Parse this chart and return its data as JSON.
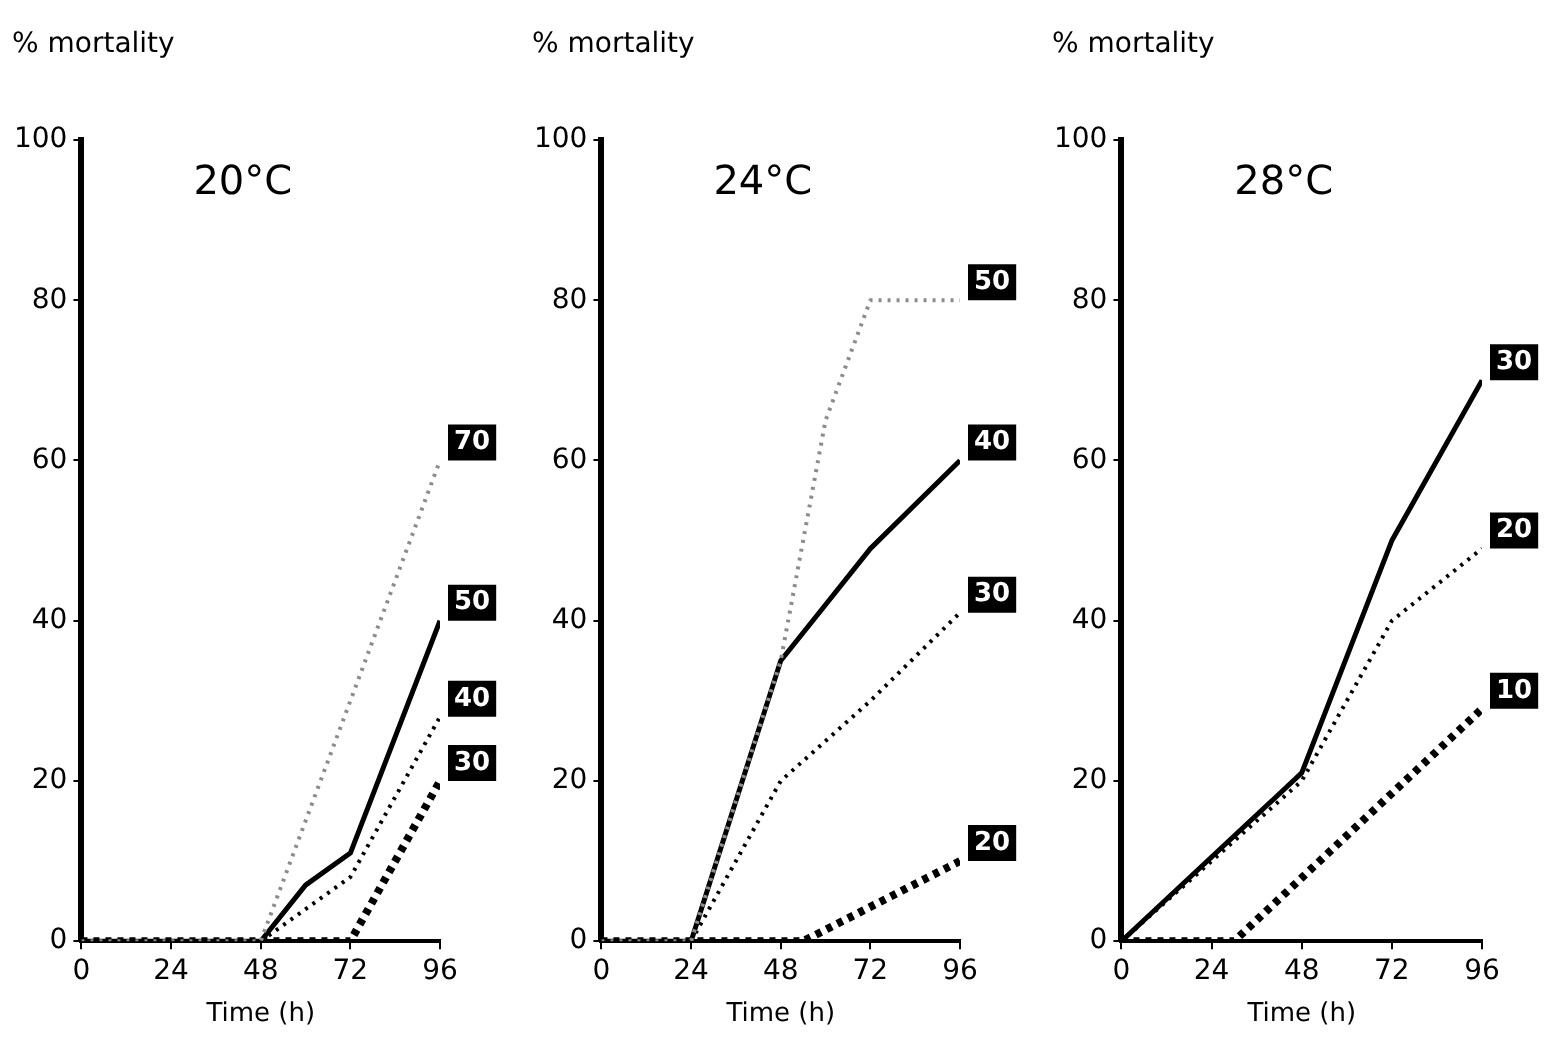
{
  "chart_data": [
    {
      "type": "line",
      "title": "20°C",
      "xlabel": "Time (h)",
      "ylabel": "% mortality",
      "xlim": [
        0,
        96
      ],
      "ylim": [
        0,
        100
      ],
      "xticks": [
        0,
        24,
        48,
        72,
        96
      ],
      "yticks": [
        0,
        20,
        40,
        60,
        80,
        100
      ],
      "grid": false,
      "marker": "none",
      "series": [
        {
          "name": "70",
          "color": "#8c8c8c",
          "line_style": "dotted",
          "x": [
            0,
            48,
            96
          ],
          "values": [
            0,
            0,
            60
          ]
        },
        {
          "name": "50",
          "color": "#000000",
          "line_style": "solid",
          "x": [
            0,
            48,
            60,
            72,
            96
          ],
          "values": [
            0,
            0,
            7,
            11,
            40
          ]
        },
        {
          "name": "40",
          "color": "#000000",
          "line_style": "dotted",
          "x": [
            0,
            48,
            72,
            96
          ],
          "values": [
            0,
            0,
            8,
            28
          ]
        },
        {
          "name": "30",
          "color": "#000000",
          "line_style": "dashed",
          "x": [
            0,
            72,
            96
          ],
          "values": [
            0,
            0,
            20
          ]
        }
      ]
    },
    {
      "type": "line",
      "title": "24°C",
      "xlabel": "Time (h)",
      "ylabel": "% mortality",
      "xlim": [
        0,
        96
      ],
      "ylim": [
        0,
        100
      ],
      "xticks": [
        0,
        24,
        48,
        72,
        96
      ],
      "yticks": [
        0,
        20,
        40,
        60,
        80,
        100
      ],
      "grid": false,
      "marker": "none",
      "series": [
        {
          "name": "50",
          "color": "#8c8c8c",
          "line_style": "dotted",
          "x": [
            0,
            24,
            48,
            60,
            72,
            96
          ],
          "values": [
            0,
            0,
            35,
            65,
            80,
            80
          ]
        },
        {
          "name": "40",
          "color": "#000000",
          "line_style": "solid",
          "x": [
            0,
            24,
            48,
            60,
            72,
            96
          ],
          "values": [
            0,
            0,
            35,
            42,
            49,
            60
          ]
        },
        {
          "name": "30",
          "color": "#000000",
          "line_style": "dotted",
          "x": [
            0,
            24,
            48,
            72,
            96
          ],
          "values": [
            0,
            0,
            20,
            30,
            41
          ]
        },
        {
          "name": "20",
          "color": "#000000",
          "line_style": "dashed",
          "x": [
            0,
            54,
            96
          ],
          "values": [
            0,
            0,
            10
          ]
        }
      ]
    },
    {
      "type": "line",
      "title": "28°C",
      "xlabel": "Time (h)",
      "ylabel": "% mortality",
      "xlim": [
        0,
        96
      ],
      "ylim": [
        0,
        100
      ],
      "xticks": [
        0,
        24,
        48,
        72,
        96
      ],
      "yticks": [
        0,
        20,
        40,
        60,
        80,
        100
      ],
      "grid": false,
      "marker": "none",
      "series": [
        {
          "name": "30",
          "color": "#000000",
          "line_style": "solid",
          "x": [
            0,
            48,
            72,
            78,
            96
          ],
          "values": [
            0,
            21,
            50,
            55,
            70
          ]
        },
        {
          "name": "20",
          "color": "#000000",
          "line_style": "dotted",
          "x": [
            0,
            48,
            72,
            96
          ],
          "values": [
            0,
            20,
            40,
            49
          ]
        },
        {
          "name": "10",
          "color": "#000000",
          "line_style": "dashed",
          "x": [
            0,
            30,
            96
          ],
          "values": [
            0,
            0,
            29
          ]
        }
      ]
    }
  ]
}
